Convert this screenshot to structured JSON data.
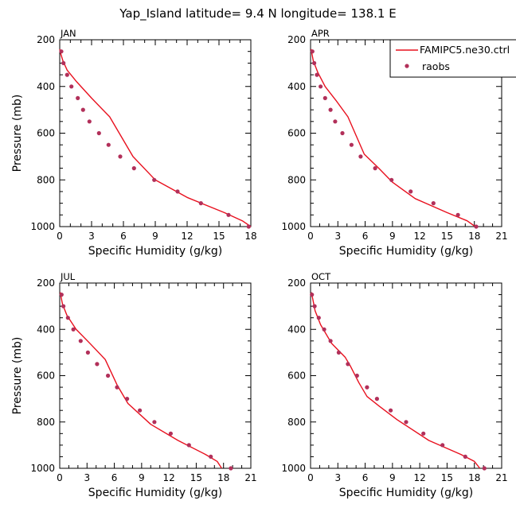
{
  "figure": {
    "title": "Yap_Island  latitude= 9.4 N longitude= 138.1 E"
  },
  "legend": {
    "model_label": "FAMIPC5.ne30.ctrl",
    "obs_label": "raobs",
    "model_color": "#e8101e",
    "obs_color": "#b2305a"
  },
  "chart_data": [
    {
      "type": "line",
      "panel": "JAN",
      "xlabel": "Specific Humidity (g/kg)",
      "ylabel": "Pressure (mb)",
      "xlim": [
        0,
        18
      ],
      "ylim": [
        1000,
        200
      ],
      "xticks": [
        0,
        3,
        6,
        9,
        12,
        15,
        18
      ],
      "yticks": [
        200,
        400,
        600,
        800,
        1000
      ],
      "series": [
        {
          "name": "FAMIPC5.ne30.ctrl",
          "kind": "line",
          "x": [
            18.0,
            17.2,
            15.5,
            12.0,
            9.0,
            6.9,
            4.7,
            3.0,
            1.6,
            0.7,
            0.3,
            0.1,
            0.0
          ],
          "y": [
            1000,
            975,
            940,
            875,
            800,
            700,
            530,
            450,
            380,
            330,
            290,
            260,
            240
          ]
        },
        {
          "name": "raobs",
          "kind": "scatter",
          "x": [
            17.8,
            15.9,
            13.3,
            11.1,
            8.9,
            7.0,
            5.7,
            4.6,
            3.7,
            2.8,
            2.2,
            1.7,
            1.1,
            0.7,
            0.35,
            0.15
          ],
          "y": [
            1000,
            950,
            900,
            850,
            800,
            750,
            700,
            650,
            600,
            550,
            500,
            450,
            400,
            350,
            300,
            250
          ]
        }
      ]
    },
    {
      "type": "line",
      "panel": "APR",
      "xlabel": "Specific Humidity (g/kg)",
      "ylabel": "",
      "xlim": [
        0,
        21
      ],
      "ylim": [
        1000,
        200
      ],
      "xticks": [
        0,
        3,
        6,
        9,
        12,
        15,
        18,
        21
      ],
      "yticks": [
        200,
        400,
        600,
        800,
        1000
      ],
      "series": [
        {
          "name": "FAMIPC5.ne30.ctrl",
          "kind": "line",
          "x": [
            18.1,
            17.2,
            15.0,
            11.5,
            9.0,
            7.5,
            5.9,
            4.1,
            2.8,
            1.6,
            0.8,
            0.3,
            0.05
          ],
          "y": [
            1000,
            975,
            940,
            880,
            810,
            750,
            690,
            530,
            460,
            400,
            340,
            290,
            240
          ]
        },
        {
          "name": "raobs",
          "kind": "scatter",
          "x": [
            18.2,
            16.2,
            13.5,
            11.0,
            8.9,
            7.1,
            5.5,
            4.5,
            3.5,
            2.7,
            2.2,
            1.6,
            1.1,
            0.7,
            0.4,
            0.2
          ],
          "y": [
            1000,
            950,
            900,
            850,
            800,
            750,
            700,
            650,
            600,
            550,
            500,
            450,
            400,
            350,
            300,
            250
          ]
        }
      ]
    },
    {
      "type": "line",
      "panel": "JUL",
      "xlabel": "Specific Humidity (g/kg)",
      "ylabel": "Pressure (mb)",
      "xlim": [
        0,
        21
      ],
      "ylim": [
        1000,
        200
      ],
      "xticks": [
        0,
        3,
        6,
        9,
        12,
        15,
        18,
        21
      ],
      "yticks": [
        200,
        400,
        600,
        800,
        1000
      ],
      "series": [
        {
          "name": "FAMIPC5.ne30.ctrl",
          "kind": "line",
          "x": [
            17.8,
            17.3,
            16.0,
            13.0,
            10.0,
            7.5,
            6.3,
            5.0,
            3.3,
            1.8,
            0.8,
            0.3,
            0.05
          ],
          "y": [
            1000,
            970,
            940,
            880,
            810,
            720,
            640,
            530,
            460,
            400,
            340,
            290,
            240
          ]
        },
        {
          "name": "raobs",
          "kind": "scatter",
          "x": [
            18.8,
            16.6,
            14.2,
            12.2,
            10.4,
            8.8,
            7.4,
            6.3,
            5.3,
            4.1,
            3.1,
            2.3,
            1.5,
            0.9,
            0.4,
            0.2
          ],
          "y": [
            1000,
            950,
            900,
            850,
            800,
            750,
            700,
            650,
            600,
            550,
            500,
            450,
            400,
            350,
            300,
            250
          ]
        }
      ]
    },
    {
      "type": "line",
      "panel": "OCT",
      "xlabel": "Specific Humidity (g/kg)",
      "ylabel": "",
      "xlim": [
        0,
        21
      ],
      "ylim": [
        1000,
        200
      ],
      "xticks": [
        0,
        3,
        6,
        9,
        12,
        15,
        18,
        21
      ],
      "yticks": [
        200,
        400,
        600,
        800,
        1000
      ],
      "series": [
        {
          "name": "FAMIPC5.ne30.ctrl",
          "kind": "line",
          "x": [
            18.6,
            18.0,
            16.5,
            13.0,
            9.5,
            7.5,
            6.2,
            5.3,
            4.4,
            3.8,
            2.3,
            1.1,
            0.5,
            0.1
          ],
          "y": [
            1000,
            970,
            940,
            880,
            790,
            730,
            690,
            630,
            560,
            520,
            460,
            380,
            320,
            240
          ]
        },
        {
          "name": "raobs",
          "kind": "scatter",
          "x": [
            19.1,
            17.0,
            14.5,
            12.4,
            10.5,
            8.8,
            7.3,
            6.2,
            5.1,
            4.1,
            3.1,
            2.2,
            1.5,
            0.9,
            0.45,
            0.15
          ],
          "y": [
            1000,
            950,
            900,
            850,
            800,
            750,
            700,
            650,
            600,
            550,
            500,
            450,
            400,
            350,
            300,
            250
          ]
        }
      ]
    }
  ]
}
